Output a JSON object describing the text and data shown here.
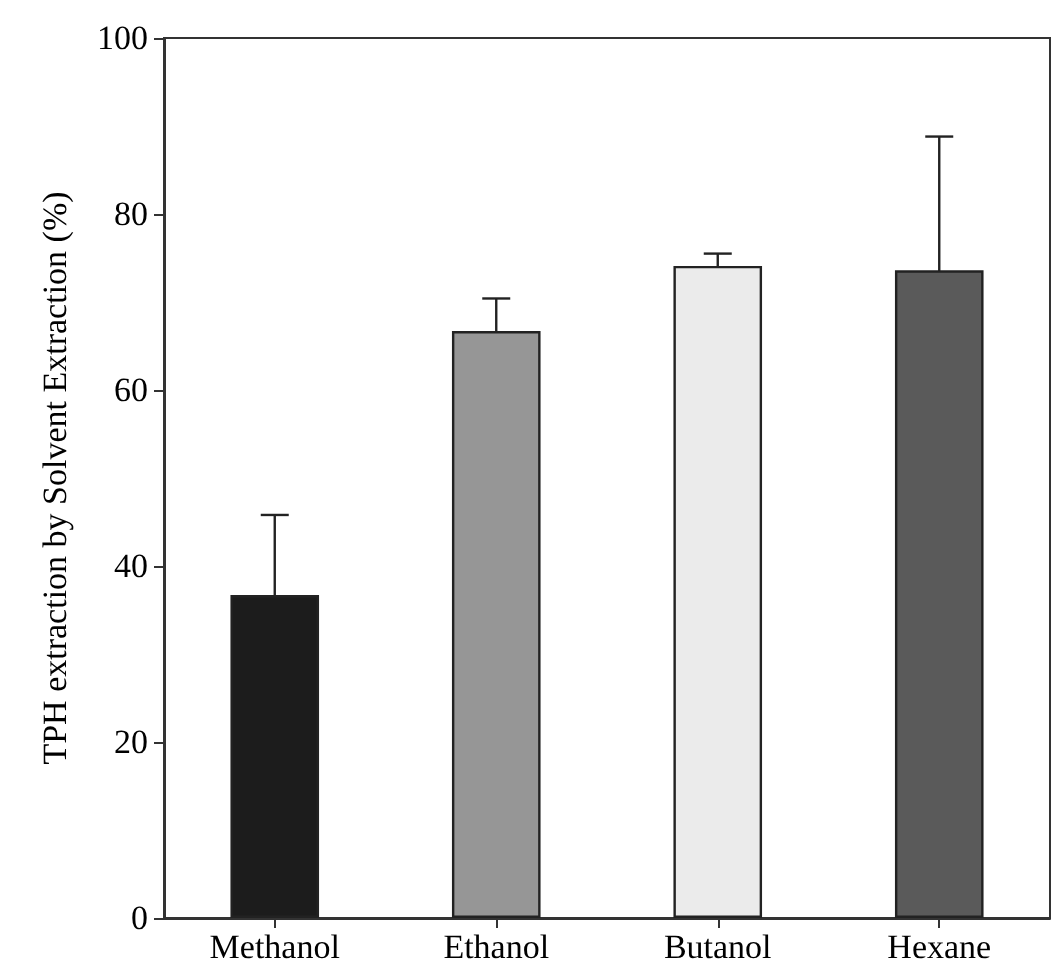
{
  "chart_data": {
    "type": "bar",
    "ylabel": "TPH extraction by Solvent Extraction (%)",
    "categories": [
      "Methanol",
      "Ethanol",
      "Butanol",
      "Hexane"
    ],
    "values": [
      36.7,
      66.7,
      74.1,
      73.6
    ],
    "errors": [
      9.1,
      3.7,
      1.4,
      15.2
    ],
    "colors": [
      "#1c1c1c",
      "#969696",
      "#ebebeb",
      "#5a5a5a"
    ],
    "ylim": [
      0,
      100
    ],
    "yticks": [
      0,
      20,
      40,
      60,
      80,
      100
    ],
    "grid": false
  }
}
